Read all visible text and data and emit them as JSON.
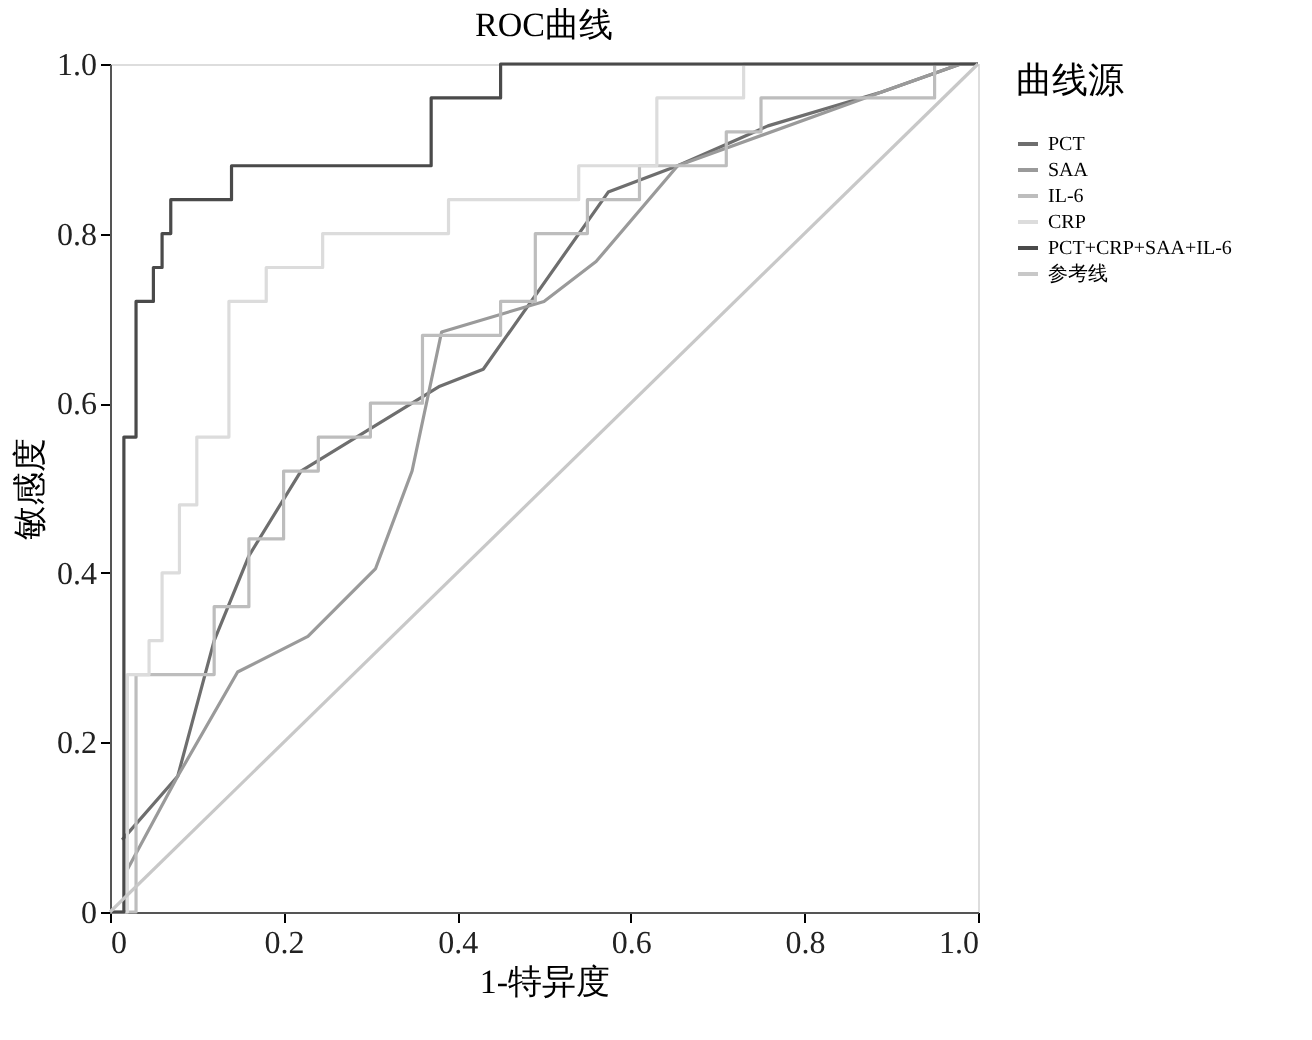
{
  "chart_data": {
    "type": "line",
    "title": "ROC曲线",
    "xlabel": "1-特异度",
    "ylabel": "敏感度",
    "legend_title": "曲线源",
    "legend": "right",
    "grid": false,
    "marker": "none",
    "line_style": "solid",
    "xlim": [
      0,
      1
    ],
    "ylim": [
      0,
      1
    ],
    "xticks": [
      0,
      0.2,
      0.4,
      0.6,
      0.8,
      {
        "value": 1,
        "label": "1.0"
      }
    ],
    "yticks": [
      0,
      0.2,
      0.4,
      0.6,
      0.8,
      {
        "value": 1,
        "label": "1.0"
      }
    ],
    "series": [
      {
        "name": "PCT",
        "color": "#6e6e6e",
        "x": [
          0.014,
          0.078,
          0.12,
          0.16,
          0.22,
          0.3,
          0.38,
          0.43,
          0.574,
          0.654,
          0.758,
          0.889,
          0.98,
          1
        ],
        "values": [
          0.085,
          0.16,
          0.32,
          0.42,
          0.52,
          0.57,
          0.62,
          0.64,
          0.849,
          0.88,
          0.927,
          0.967,
          1,
          1
        ]
      },
      {
        "name": "SAA",
        "color": "#9a9a9a",
        "x": [
          0.02,
          0.078,
          0.147,
          0.228,
          0.306,
          0.348,
          0.382,
          0.5,
          0.56,
          0.654,
          0.889,
          0.98,
          1
        ],
        "values": [
          0.05,
          0.16,
          0.283,
          0.325,
          0.405,
          0.52,
          0.684,
          0.72,
          0.767,
          0.88,
          0.967,
          1,
          1
        ]
      },
      {
        "name": "IL-6",
        "color": "#bdbdbd",
        "x": [
          0,
          0.03,
          0.03,
          0.12,
          0.12,
          0.16,
          0.16,
          0.2,
          0.2,
          0.24,
          0.24,
          0.3,
          0.3,
          0.36,
          0.36,
          0.45,
          0.45,
          0.49,
          0.49,
          0.55,
          0.55,
          0.61,
          0.61,
          0.71,
          0.71,
          0.75,
          0.75,
          0.95,
          0.95,
          1
        ],
        "values": [
          0,
          0,
          0.28,
          0.28,
          0.36,
          0.36,
          0.44,
          0.44,
          0.52,
          0.52,
          0.56,
          0.56,
          0.6,
          0.6,
          0.68,
          0.68,
          0.72,
          0.72,
          0.8,
          0.8,
          0.84,
          0.84,
          0.88,
          0.88,
          0.92,
          0.92,
          0.96,
          0.96,
          1,
          1
        ]
      },
      {
        "name": "CRP",
        "color": "#dcdcdc",
        "x": [
          0,
          0.02,
          0.02,
          0.045,
          0.045,
          0.06,
          0.06,
          0.08,
          0.08,
          0.1,
          0.1,
          0.137,
          0.137,
          0.18,
          0.18,
          0.245,
          0.245,
          0.39,
          0.39,
          0.54,
          0.54,
          0.63,
          0.63,
          0.73,
          0.73,
          1
        ],
        "values": [
          0,
          0,
          0.28,
          0.28,
          0.32,
          0.32,
          0.4,
          0.4,
          0.48,
          0.48,
          0.56,
          0.56,
          0.72,
          0.72,
          0.76,
          0.76,
          0.8,
          0.8,
          0.84,
          0.84,
          0.88,
          0.88,
          0.96,
          0.96,
          1,
          1
        ]
      },
      {
        "name": "PCT+CRP+SAA+IL-6",
        "color": "#4a4a4a",
        "x": [
          0,
          0.016,
          0.016,
          0.03,
          0.03,
          0.05,
          0.05,
          0.06,
          0.06,
          0.07,
          0.07,
          0.14,
          0.14,
          0.37,
          0.37,
          0.45,
          0.45,
          1
        ],
        "values": [
          0,
          0,
          0.56,
          0.56,
          0.72,
          0.72,
          0.76,
          0.76,
          0.8,
          0.8,
          0.84,
          0.84,
          0.88,
          0.88,
          0.96,
          0.96,
          1,
          1
        ]
      },
      {
        "name": "参考线",
        "color": "#c8c8c8",
        "x": [
          0,
          1
        ],
        "values": [
          0,
          1
        ]
      }
    ]
  }
}
